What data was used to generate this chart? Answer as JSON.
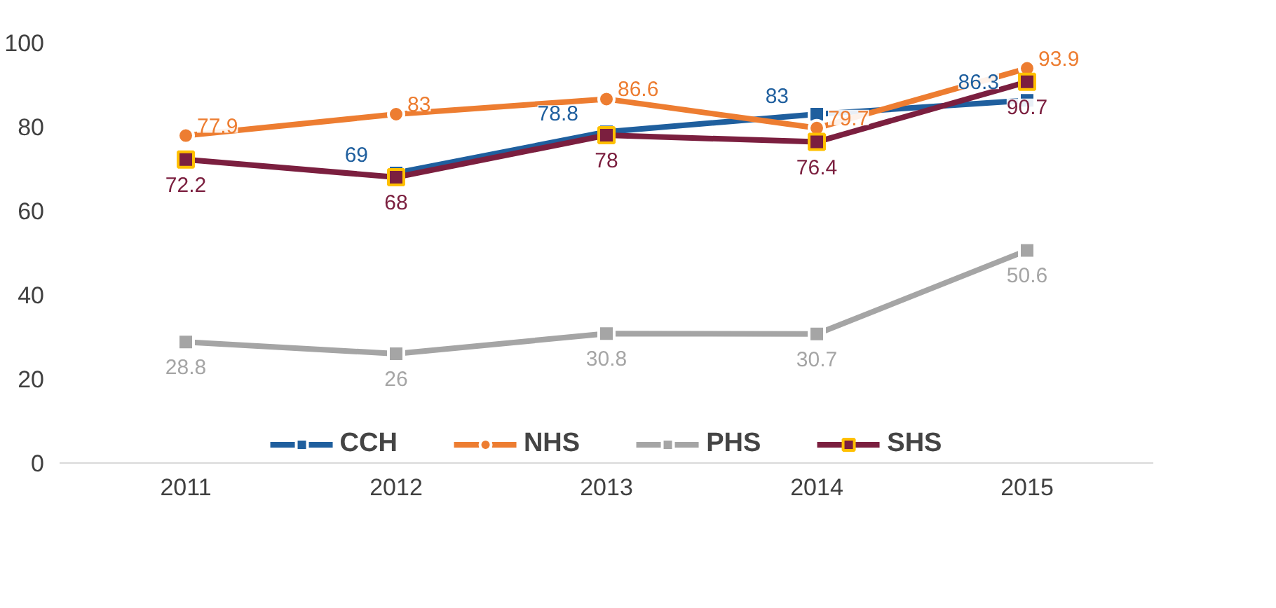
{
  "chart_data": {
    "type": "line",
    "categories": [
      "2011",
      "2012",
      "2013",
      "2014",
      "2015"
    ],
    "series": [
      {
        "name": "CCH",
        "color": "#1f5f9e",
        "values": [
          null,
          69,
          78.8,
          83,
          86.3
        ],
        "marker": "square"
      },
      {
        "name": "NHS",
        "color": "#ed7d31",
        "values": [
          77.9,
          83,
          86.6,
          79.7,
          93.9
        ],
        "marker": "circle"
      },
      {
        "name": "PHS",
        "color": "#a5a5a5",
        "values": [
          28.8,
          26,
          30.8,
          30.7,
          50.6
        ],
        "marker": "square"
      },
      {
        "name": "SHS",
        "color": "#7b1f3f",
        "values": [
          72.2,
          68,
          78,
          76.4,
          90.7
        ],
        "marker": "square"
      }
    ],
    "ylim": [
      0,
      100
    ],
    "yticks": [
      0,
      20,
      40,
      60,
      80,
      100
    ],
    "grid": false,
    "legend": "bottom",
    "data_labels": true
  }
}
